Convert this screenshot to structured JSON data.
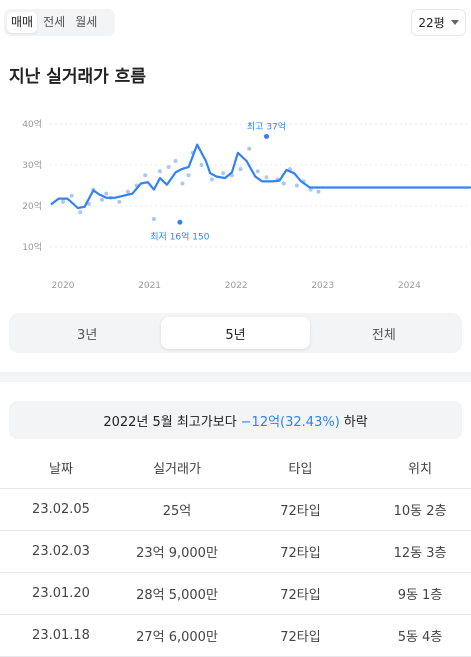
{
  "deal_tabs": [
    "매매",
    "전세",
    "월세"
  ],
  "size_select": {
    "value": "22평"
  },
  "title": "지난 실거래가 흐름",
  "chart_data": {
    "type": "line",
    "title": "",
    "xlabel": "",
    "ylabel": "",
    "x_ticks": [
      "2020",
      "2021",
      "2022",
      "2023",
      "2024"
    ],
    "y_ticks": [
      "10억",
      "20억",
      "30억",
      "40억"
    ],
    "ylim": [
      8,
      42
    ],
    "xlim": [
      2019.85,
      2024.7
    ],
    "grid": "horizontal dotted",
    "colors": {
      "line": "#3182f6",
      "dots": "#a9c8f7",
      "highlight": "#3182f6"
    },
    "series": [
      {
        "x": [
          2019.87,
          2019.95,
          2020.05,
          2020.12,
          2020.17,
          2020.25,
          2020.35,
          2020.42,
          2020.5,
          2020.6,
          2020.7,
          2020.8,
          2020.9,
          2020.98,
          2021.05,
          2021.12,
          2021.2,
          2021.3,
          2021.37,
          2021.45,
          2021.55,
          2021.65,
          2021.7,
          2021.77,
          2021.87,
          2021.95,
          2022.02,
          2022.12,
          2022.22,
          2022.3,
          2022.35,
          2022.42,
          2022.5,
          2022.58,
          2022.67,
          2022.75,
          2022.85,
          2022.92,
          2023.0,
          2023.1,
          2023.12,
          2023.2,
          2023.5,
          2023.8,
          2024.1,
          2024.4,
          2024.7
        ],
        "values": [
          20.5,
          21.8,
          21.8,
          20.5,
          19.5,
          19.8,
          23.8,
          22.8,
          22.0,
          22.0,
          22.5,
          23.0,
          25.5,
          25.8,
          24.0,
          26.8,
          25.2,
          28.2,
          29.0,
          29.5,
          35.0,
          31.0,
          28.0,
          27.2,
          26.8,
          28.2,
          33.0,
          31.0,
          27.2,
          26.0,
          26.0,
          26.0,
          26.2,
          28.8,
          28.0,
          26.0,
          24.5,
          24.5,
          24.5,
          24.5,
          24.5,
          24.5,
          24.5,
          24.5,
          24.5,
          24.5,
          24.5
        ]
      }
    ],
    "scatter": {
      "x": [
        2020.0,
        2020.1,
        2020.2,
        2020.3,
        2020.35,
        2020.45,
        2020.5,
        2020.55,
        2020.65,
        2020.75,
        2020.85,
        2020.95,
        2021.05,
        2021.12,
        2021.22,
        2021.3,
        2021.38,
        2021.45,
        2021.5,
        2021.6,
        2021.72,
        2021.85,
        2021.95,
        2022.05,
        2022.15,
        2022.25,
        2022.35,
        2022.48,
        2022.55,
        2022.62,
        2022.7,
        2022.78,
        2022.86,
        2022.95
      ],
      "values": [
        21.0,
        22.5,
        18.5,
        20.5,
        24.0,
        21.5,
        23.0,
        22.0,
        21.0,
        23.5,
        25.0,
        27.5,
        16.8,
        28.5,
        29.5,
        31.0,
        25.5,
        27.5,
        33.0,
        30.0,
        26.5,
        28.0,
        27.5,
        29.0,
        34.0,
        28.5,
        27.0,
        26.5,
        25.5,
        29.0,
        25.0,
        26.0,
        24.0,
        23.5
      ]
    },
    "annotations": [
      {
        "label": "최고 37억",
        "x": 2022.35,
        "y": 37.0,
        "position": "above"
      },
      {
        "label": "최저 16억 150",
        "x": 2021.35,
        "y": 16.0,
        "position": "below"
      }
    ]
  },
  "period_tabs": {
    "items": [
      "3년",
      "5년",
      "전체"
    ],
    "selected": "5년"
  },
  "compare": {
    "prefix": "2022년 5월 최고가보다",
    "diff": "−12억(32.43%)",
    "suffix": "하락"
  },
  "table": {
    "headers": [
      "날짜",
      "실거래가",
      "타입",
      "위치"
    ],
    "rows": [
      [
        "23.02.05",
        "25억",
        "72타입",
        "10동 2층"
      ],
      [
        "23.02.03",
        "23억 9,000만",
        "72타입",
        "12동 3층"
      ],
      [
        "23.01.20",
        "28억 5,000만",
        "72타입",
        "9동 1층"
      ],
      [
        "23.01.18",
        "27억 6,000만",
        "72타입",
        "5동 4층"
      ]
    ]
  }
}
